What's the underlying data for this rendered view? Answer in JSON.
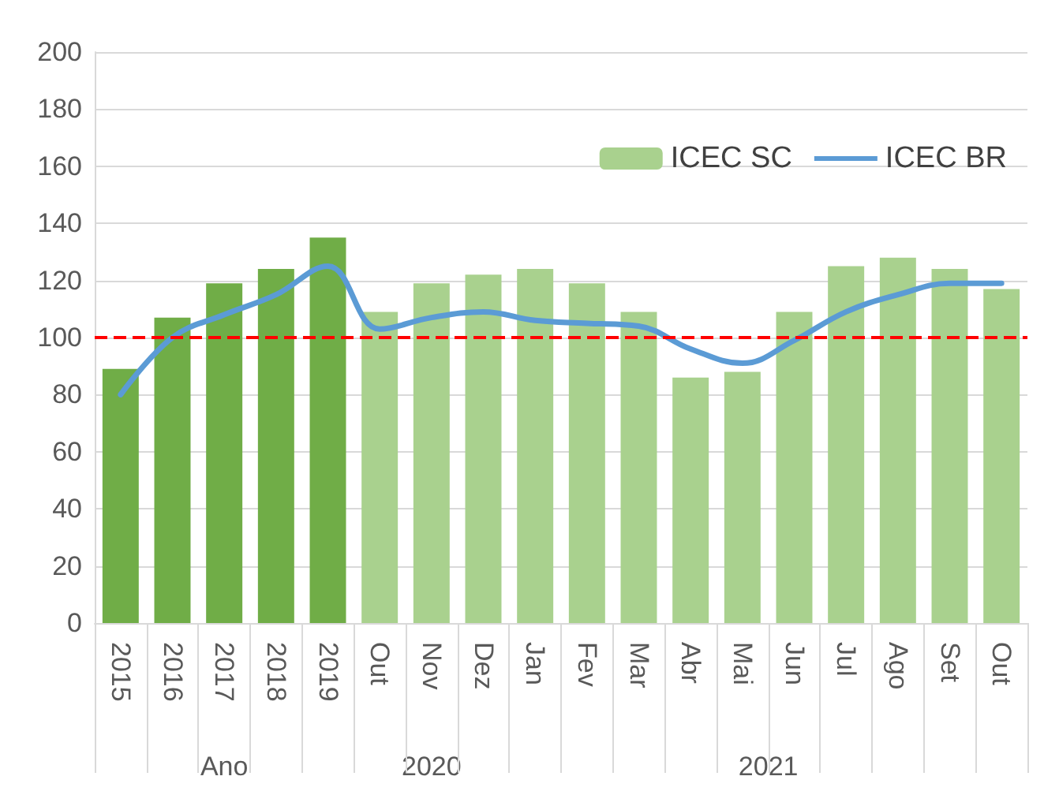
{
  "chart_data": {
    "type": "bar",
    "categories": [
      "2015",
      "2016",
      "2017",
      "2018",
      "2019",
      "Out",
      "Nov",
      "Dez",
      "Jan",
      "Fev",
      "Mar",
      "Abr",
      "Mai",
      "Jun",
      "Jul",
      "Ago",
      "Set",
      "Out"
    ],
    "series": [
      {
        "name": "ICEC SC",
        "color": "#a9d18e",
        "colors": [
          "#70ad47",
          "#70ad47",
          "#70ad47",
          "#70ad47",
          "#70ad47",
          "#a9d18e",
          "#a9d18e",
          "#a9d18e",
          "#a9d18e",
          "#a9d18e",
          "#a9d18e",
          "#a9d18e",
          "#a9d18e",
          "#a9d18e",
          "#a9d18e",
          "#a9d18e",
          "#a9d18e",
          "#a9d18e"
        ],
        "values": [
          89,
          107,
          119,
          124,
          135,
          109,
          119,
          122,
          124,
          119,
          109,
          86,
          88,
          109,
          125,
          128,
          124,
          117
        ]
      },
      {
        "name": "ICEC BR",
        "type": "line",
        "color": "#5b9bd5",
        "values": [
          80,
          100,
          108,
          115,
          125,
          103,
          107,
          109,
          106,
          105,
          104,
          96,
          91,
          99,
          109,
          115,
          119,
          119
        ]
      }
    ],
    "ylim": [
      0,
      200
    ],
    "yticks": [
      0,
      20,
      40,
      60,
      80,
      100,
      120,
      140,
      160,
      180,
      200
    ],
    "grid": "y",
    "legend": "top right",
    "marker": "none",
    "ref_lines": [
      {
        "axis": "y",
        "value": 100,
        "color": "#ff0000",
        "line_style": "dashed"
      }
    ],
    "annotations": [
      "Ano",
      "2020",
      "2021"
    ]
  }
}
